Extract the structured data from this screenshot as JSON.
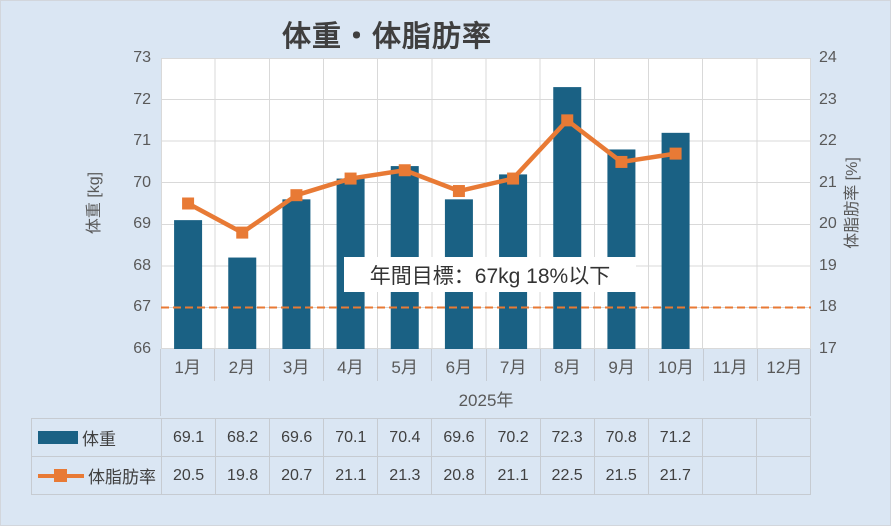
{
  "chart_data": {
    "type": "bar",
    "title": "体重・体脂肪率",
    "categories": [
      "1月",
      "2月",
      "3月",
      "4月",
      "5月",
      "6月",
      "7月",
      "8月",
      "9月",
      "10月",
      "11月",
      "12月"
    ],
    "series": [
      {
        "name": "体重",
        "type": "bar",
        "axis": "left",
        "color": "#1A6184",
        "values": [
          69.1,
          68.2,
          69.6,
          70.1,
          70.4,
          69.6,
          70.2,
          72.3,
          70.8,
          71.2,
          null,
          null
        ]
      },
      {
        "name": "体脂肪率",
        "type": "line",
        "axis": "right",
        "color": "#E87A35",
        "values": [
          20.5,
          19.8,
          20.7,
          21.1,
          21.3,
          20.8,
          21.1,
          22.5,
          21.5,
          21.7,
          null,
          null
        ]
      }
    ],
    "xlabel": "2025年",
    "ylabel_left": "体重 [kg]",
    "ylabel_right": "体脂肪率 [%]",
    "ylim_left": [
      66,
      73
    ],
    "ylim_right": [
      17,
      24
    ],
    "yticks_left": [
      66,
      67,
      68,
      69,
      70,
      71,
      72,
      73
    ],
    "yticks_right": [
      17,
      18,
      19,
      20,
      21,
      22,
      23,
      24
    ],
    "grid": true,
    "legend_position": "table-left",
    "annotation": "年間目標：67kg 18%以下",
    "target_line": {
      "left_value": 67,
      "right_value": 18,
      "style": "dashed",
      "color": "#E87A35"
    }
  },
  "theme": {
    "background": "#DAE6F3",
    "plot_background": "#FFFFFF",
    "grid_color": "#D9D9D9",
    "separator_color": "#C6CCD4",
    "axis_text_color": "#595959",
    "title_color": "#3F3F3F",
    "table_border_color": "#C6CBD1",
    "table_text_color": "#404040",
    "border_color": "#D2D6DC",
    "annotation_background": "#FFFFFF"
  }
}
